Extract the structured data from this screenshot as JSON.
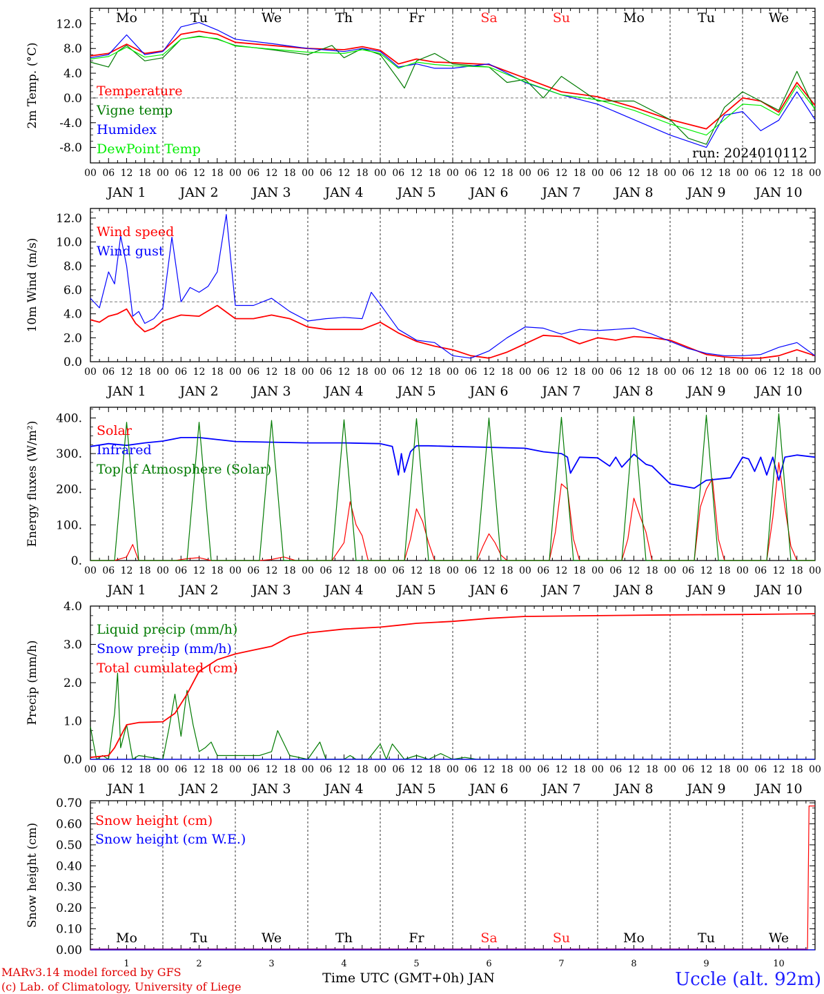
{
  "days": [
    "Mo",
    "Tu",
    "We",
    "Th",
    "Fr",
    "Sa",
    "Su",
    "Mo",
    "Tu",
    "We"
  ],
  "weekend_days": [
    5,
    6
  ],
  "date_labels": [
    "JAN  1",
    "JAN  2",
    "JAN  3",
    "JAN  4",
    "JAN  5",
    "JAN  6",
    "JAN  7",
    "JAN  8",
    "JAN  9",
    "JAN 10"
  ],
  "hour_ticks": [
    "00",
    "06",
    "12",
    "18"
  ],
  "last_hour_tick": "00",
  "run_label": "run: 2024010112",
  "footer": {
    "credit1": "MARv3.14 model forced by GFS",
    "credit2": "(c) Lab. of Climatology, University of Liege",
    "xlabel": "Time UTC (GMT+0h) JAN",
    "station": "Uccle (alt. 92m)",
    "day_numbers": [
      "1",
      "2",
      "3",
      "4",
      "5",
      "6",
      "7",
      "8",
      "9",
      "10"
    ]
  },
  "colors": {
    "red": "#ff0000",
    "green": "#007a00",
    "blue": "#0000ff",
    "lightgreen": "#00ee00",
    "purple": "#7a007a",
    "grid": "#000000",
    "weekend": "#ff2020"
  },
  "chart_data": [
    {
      "type": "line",
      "ylabel": "2m Temp. (°C)",
      "ylim": [
        -10.5,
        14.5
      ],
      "yticks": [
        "12.0",
        "8.0",
        "4.0",
        "0.0",
        "-4.0",
        "-8.0"
      ],
      "ytick_values": [
        12,
        8,
        4,
        0,
        -4,
        -8
      ],
      "ref_line": 0,
      "xlim_hours": [
        0,
        240
      ],
      "series": [
        {
          "name": "Temperature",
          "color": "#ff0000",
          "x": [
            0,
            6,
            12,
            18,
            24,
            30,
            36,
            42,
            48,
            60,
            72,
            84,
            90,
            96,
            102,
            108,
            114,
            120,
            132,
            144,
            156,
            168,
            180,
            192,
            204,
            216,
            222,
            228,
            234,
            240
          ],
          "y": [
            6.8,
            7.2,
            8.7,
            7.2,
            7.6,
            10.3,
            10.8,
            10.3,
            9.0,
            8.5,
            8.0,
            7.8,
            8.3,
            7.7,
            5.5,
            6.3,
            5.8,
            5.7,
            5.4,
            3.2,
            1.0,
            0.2,
            -1.5,
            -3.5,
            -5.0,
            0.0,
            -0.5,
            -2.3,
            2.5,
            -1.2
          ]
        },
        {
          "name": "Vigne temp",
          "color": "#007a00",
          "x": [
            0,
            6,
            9,
            12,
            18,
            24,
            30,
            36,
            42,
            48,
            60,
            72,
            80,
            84,
            90,
            96,
            102,
            104,
            108,
            114,
            120,
            132,
            138,
            144,
            150,
            156,
            162,
            168,
            180,
            192,
            198,
            204,
            210,
            216,
            222,
            228,
            234,
            240
          ],
          "y": [
            5.8,
            5.0,
            7.5,
            8.5,
            6.0,
            6.5,
            9.5,
            10.0,
            9.5,
            8.5,
            7.8,
            7.0,
            8.5,
            6.5,
            8.0,
            7.0,
            3.0,
            1.6,
            6.0,
            7.2,
            5.5,
            5.0,
            2.5,
            3.0,
            0.0,
            3.5,
            1.5,
            -0.5,
            -0.5,
            -3.5,
            -6.5,
            -7.5,
            -1.5,
            1.0,
            -0.5,
            -2.0,
            4.3,
            -2.0
          ]
        },
        {
          "name": "Humidex",
          "color": "#0000ff",
          "x": [
            0,
            6,
            12,
            18,
            24,
            30,
            36,
            42,
            48,
            60,
            72,
            84,
            90,
            96,
            102,
            108,
            114,
            120,
            132,
            144,
            156,
            168,
            180,
            192,
            204,
            210,
            216,
            222,
            228,
            234,
            240
          ],
          "y": [
            6.5,
            7.0,
            10.2,
            7.0,
            7.5,
            11.5,
            12.2,
            11.0,
            9.5,
            8.8,
            8.0,
            7.5,
            8.0,
            7.5,
            5.0,
            5.5,
            4.8,
            4.8,
            5.5,
            2.5,
            0.5,
            -1.0,
            -3.5,
            -6.0,
            -8.0,
            -2.8,
            -2.2,
            -5.3,
            -3.6,
            1.0,
            -3.5
          ]
        },
        {
          "name": "DewPoint Temp",
          "color": "#00ee00",
          "x": [
            0,
            6,
            12,
            18,
            24,
            30,
            36,
            42,
            48,
            60,
            72,
            84,
            90,
            96,
            102,
            108,
            114,
            120,
            132,
            144,
            156,
            168,
            180,
            192,
            204,
            216,
            222,
            228,
            234,
            240
          ],
          "y": [
            6.3,
            6.7,
            8.2,
            6.6,
            7.0,
            9.5,
            9.9,
            9.6,
            8.4,
            7.9,
            7.4,
            7.2,
            7.8,
            7.2,
            4.8,
            5.8,
            5.4,
            5.2,
            5.0,
            2.6,
            0.5,
            -0.3,
            -2.0,
            -4.2,
            -6.0,
            -1.0,
            -1.2,
            -2.8,
            2.0,
            -1.8
          ]
        }
      ]
    },
    {
      "type": "line",
      "ylabel": "10m Wind (m/s)",
      "ylim": [
        0,
        12.8
      ],
      "yticks": [
        "12.0",
        "10.0",
        "8.0",
        "6.0",
        "4.0",
        "2.0",
        "0.0"
      ],
      "ytick_values": [
        12,
        10,
        8,
        6,
        4,
        2,
        0
      ],
      "ref_line": 5,
      "xlim_hours": [
        0,
        240
      ],
      "series": [
        {
          "name": "Wind speed",
          "color": "#ff0000",
          "x": [
            0,
            3,
            6,
            9,
            12,
            15,
            18,
            21,
            24,
            30,
            36,
            42,
            48,
            54,
            60,
            66,
            72,
            78,
            84,
            90,
            96,
            102,
            108,
            114,
            120,
            126,
            132,
            138,
            144,
            150,
            156,
            162,
            168,
            174,
            180,
            186,
            192,
            198,
            204,
            210,
            216,
            222,
            228,
            234,
            240
          ],
          "y": [
            3.5,
            3.3,
            3.8,
            4.0,
            4.4,
            3.2,
            2.5,
            2.8,
            3.4,
            3.9,
            3.8,
            4.7,
            3.6,
            3.6,
            3.9,
            3.6,
            2.9,
            2.7,
            2.7,
            2.7,
            3.3,
            2.4,
            1.7,
            1.3,
            1.0,
            0.5,
            0.3,
            0.8,
            1.5,
            2.2,
            2.1,
            1.5,
            2.0,
            1.8,
            2.1,
            2.0,
            1.8,
            1.2,
            0.6,
            0.4,
            0.3,
            0.3,
            0.5,
            1.0,
            0.5
          ]
        },
        {
          "name": "Wind gust",
          "color": "#0000ff",
          "x": [
            0,
            3,
            6,
            8,
            10,
            12,
            14,
            16,
            18,
            21,
            24,
            27,
            30,
            33,
            36,
            39,
            42,
            45,
            48,
            54,
            60,
            66,
            72,
            78,
            84,
            90,
            93,
            96,
            102,
            108,
            114,
            120,
            126,
            132,
            138,
            144,
            150,
            156,
            162,
            168,
            174,
            180,
            186,
            192,
            198,
            204,
            210,
            216,
            222,
            228,
            234,
            240
          ],
          "y": [
            5.3,
            4.5,
            7.5,
            6.5,
            10.5,
            8.0,
            3.8,
            4.2,
            3.2,
            3.6,
            4.5,
            10.4,
            5.0,
            6.2,
            5.8,
            6.3,
            7.5,
            12.3,
            4.7,
            4.7,
            5.3,
            4.2,
            3.4,
            3.6,
            3.7,
            3.6,
            5.8,
            4.8,
            2.7,
            1.8,
            1.6,
            0.5,
            0.3,
            0.9,
            2.0,
            2.9,
            2.8,
            2.3,
            2.7,
            2.6,
            2.7,
            2.8,
            2.3,
            1.7,
            1.1,
            0.7,
            0.5,
            0.5,
            0.6,
            1.2,
            1.6,
            0.5
          ]
        }
      ]
    },
    {
      "type": "line",
      "ylabel": "Energy fluxes (W/m²)",
      "ylim": [
        0,
        430
      ],
      "yticks": [
        "400.",
        "300.",
        "200.",
        "100.",
        "0."
      ],
      "ytick_values": [
        400,
        300,
        200,
        100,
        0
      ],
      "xlim_hours": [
        0,
        240
      ],
      "series": [
        {
          "name": "Solar",
          "color": "#ff0000",
          "x": [
            0,
            8,
            10,
            12,
            14,
            16,
            28,
            32,
            36,
            40,
            56,
            60,
            64,
            68,
            80,
            84,
            86,
            88,
            90,
            92,
            104,
            106,
            108,
            110,
            112,
            114,
            128,
            130,
            132,
            134,
            136,
            138,
            152,
            154,
            156,
            158,
            160,
            162,
            176,
            178,
            180,
            182,
            184,
            186,
            200,
            202,
            204,
            206,
            208,
            210,
            224,
            226,
            228,
            230,
            232,
            234,
            240
          ],
          "y": [
            0,
            0,
            5,
            10,
            45,
            0,
            0,
            5,
            8,
            0,
            0,
            3,
            10,
            0,
            0,
            50,
            165,
            100,
            70,
            0,
            0,
            60,
            145,
            110,
            50,
            0,
            0,
            40,
            75,
            50,
            15,
            0,
            0,
            80,
            215,
            200,
            60,
            0,
            0,
            60,
            175,
            125,
            80,
            0,
            0,
            150,
            200,
            230,
            60,
            0,
            0,
            120,
            275,
            150,
            40,
            0,
            0
          ]
        },
        {
          "name": "Infrared",
          "color": "#0000ff",
          "x": [
            0,
            6,
            12,
            18,
            24,
            30,
            36,
            48,
            72,
            84,
            96,
            100,
            102,
            103,
            104,
            106,
            108,
            112,
            120,
            130,
            144,
            150,
            156,
            158,
            159,
            162,
            168,
            172,
            174,
            176,
            180,
            184,
            186,
            192,
            200,
            204,
            212,
            216,
            218,
            220,
            222,
            224,
            226,
            228,
            230,
            234,
            240
          ],
          "y": [
            320,
            328,
            323,
            330,
            335,
            345,
            345,
            334,
            330,
            330,
            328,
            320,
            240,
            300,
            248,
            305,
            322,
            322,
            320,
            318,
            315,
            305,
            300,
            290,
            245,
            290,
            288,
            265,
            290,
            262,
            298,
            270,
            265,
            215,
            203,
            225,
            232,
            290,
            285,
            250,
            290,
            240,
            290,
            225,
            290,
            296,
            290
          ]
        },
        {
          "name": "Top of Atmosphere (Solar)",
          "color": "#007a00",
          "x": [
            0,
            8,
            12,
            16,
            32,
            36,
            40,
            56,
            60,
            64,
            80,
            84,
            88,
            104,
            108,
            112,
            128,
            132,
            136,
            152,
            156,
            160,
            176,
            180,
            184,
            200,
            204,
            208,
            224,
            228,
            232,
            240
          ],
          "y": [
            0,
            0,
            388,
            0,
            0,
            388,
            0,
            0,
            393,
            0,
            0,
            395,
            0,
            0,
            398,
            0,
            0,
            400,
            0,
            0,
            402,
            0,
            0,
            404,
            0,
            0,
            408,
            0,
            0,
            412,
            0,
            0
          ]
        }
      ]
    },
    {
      "type": "line",
      "ylabel": "Precip (mm/h)",
      "ylim": [
        0,
        4.0
      ],
      "yticks": [
        "4.0",
        "3.0",
        "2.0",
        "1.0",
        "0.0"
      ],
      "ytick_values": [
        4,
        3,
        2,
        1,
        0
      ],
      "xlim_hours": [
        0,
        240
      ],
      "series": [
        {
          "name": "Liquid precip (mm/h)",
          "color": "#007a00",
          "x": [
            0,
            2,
            4,
            6,
            8,
            9,
            10,
            12,
            14,
            16,
            24,
            26,
            28,
            30,
            32,
            34,
            36,
            38,
            40,
            42,
            44,
            48,
            56,
            60,
            62,
            66,
            72,
            76,
            78,
            84,
            86,
            88,
            92,
            96,
            98,
            100,
            104,
            108,
            112,
            116,
            120,
            124,
            128,
            240
          ],
          "y": [
            0.85,
            0.0,
            0.1,
            0.0,
            1.2,
            2.25,
            0.3,
            0.9,
            0.0,
            0.1,
            0.0,
            0.8,
            1.7,
            0.6,
            1.8,
            0.9,
            0.2,
            0.3,
            0.45,
            0.1,
            0.1,
            0.1,
            0.1,
            0.2,
            0.75,
            0.1,
            0.0,
            0.45,
            0.0,
            0.0,
            0.1,
            0.0,
            0.0,
            0.4,
            0.0,
            0.4,
            0.0,
            0.1,
            0.0,
            0.15,
            0.0,
            0.05,
            0.0,
            0.0
          ]
        },
        {
          "name": "Snow precip (mm/h)",
          "color": "#0000ff",
          "x": [
            0,
            240
          ],
          "y": [
            0,
            0
          ]
        },
        {
          "name": "Total cumulated (cm)",
          "color": "#ff0000",
          "x": [
            0,
            6,
            8,
            12,
            16,
            20,
            24,
            28,
            32,
            36,
            42,
            48,
            54,
            60,
            66,
            72,
            84,
            96,
            102,
            108,
            120,
            132,
            144,
            168,
            192,
            216,
            240
          ],
          "y": [
            0.05,
            0.1,
            0.3,
            0.9,
            0.96,
            0.97,
            0.98,
            1.2,
            1.7,
            2.3,
            2.6,
            2.75,
            2.85,
            2.95,
            3.2,
            3.3,
            3.4,
            3.45,
            3.5,
            3.55,
            3.6,
            3.68,
            3.73,
            3.75,
            3.77,
            3.78,
            3.8
          ]
        }
      ]
    },
    {
      "type": "line",
      "ylabel": "Snow height (cm)",
      "ylim": [
        0,
        0.71
      ],
      "yticks": [
        "0.70",
        "0.60",
        "0.50",
        "0.40",
        "0.30",
        "0.20",
        "0.10",
        "0.00"
      ],
      "ytick_values": [
        0.7,
        0.6,
        0.5,
        0.4,
        0.3,
        0.2,
        0.1,
        0
      ],
      "xlim_hours": [
        0,
        240
      ],
      "series": [
        {
          "name": "Snow height (cm)",
          "color": "#ff0000",
          "x": [
            0,
            237.5,
            238,
            240
          ],
          "y": [
            0,
            0,
            0.685,
            0.685
          ]
        },
        {
          "name": "Snow height (cm W.E.)",
          "color": "#0000ff",
          "x": [
            0,
            240
          ],
          "y": [
            0,
            0
          ]
        }
      ]
    }
  ]
}
